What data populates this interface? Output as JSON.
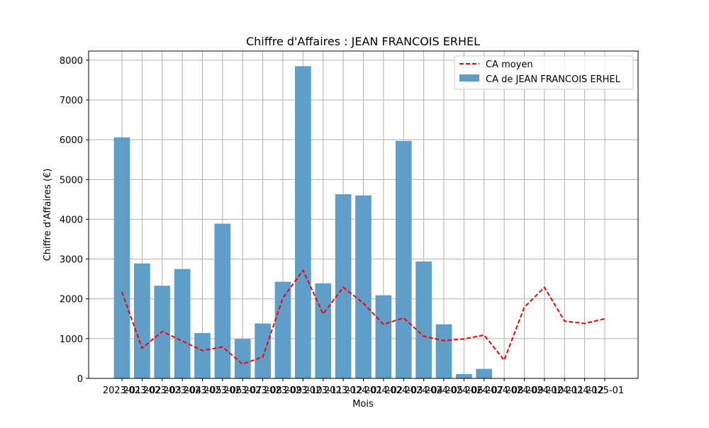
{
  "chart_data": {
    "type": "bar",
    "title": "Chiffre d'Affaires : JEAN FRANCOIS ERHEL",
    "xlabel": "Mois",
    "ylabel": "Chiffre d'Affaires (€)",
    "categories": [
      "2023-01",
      "2023-02",
      "2023-03",
      "2023-04",
      "2023-05",
      "2023-06",
      "2023-07",
      "2023-08",
      "2023-09",
      "2023-10",
      "2023-11",
      "2023-12",
      "2024-01",
      "2024-02",
      "2024-03",
      "2024-04",
      "2024-05",
      "2024-06",
      "2024-07",
      "2024-08",
      "2024-09",
      "2024-10",
      "2024-11",
      "2024-12",
      "2025-01"
    ],
    "yticks": [
      0,
      1000,
      2000,
      3000,
      4000,
      5000,
      6000,
      7000,
      8000
    ],
    "ylim": [
      0,
      8230
    ],
    "grid": true,
    "legend_position": "top-right",
    "series": [
      {
        "name": "CA de JEAN FRANCOIS ERHEL",
        "kind": "bar",
        "color": "#5f9ec9",
        "x": [
          "2023-01",
          "2023-02",
          "2023-03",
          "2023-04",
          "2023-05",
          "2023-06",
          "2023-07",
          "2023-08",
          "2023-09",
          "2023-10",
          "2023-11",
          "2023-12",
          "2024-01",
          "2024-02",
          "2024-03",
          "2024-04",
          "2024-05",
          "2024-06",
          "2024-07"
        ],
        "values": [
          6060,
          2890,
          2330,
          2750,
          1140,
          3890,
          990,
          1380,
          2430,
          7850,
          2390,
          4630,
          4600,
          2090,
          5970,
          2940,
          1360,
          110,
          240
        ]
      },
      {
        "name": "CA moyen",
        "kind": "line",
        "style": "dashed",
        "color": "#ff0000",
        "x": [
          "2023-01",
          "2023-02",
          "2023-03",
          "2023-04",
          "2023-05",
          "2023-06",
          "2023-07",
          "2023-08",
          "2023-09",
          "2023-10",
          "2023-11",
          "2023-12",
          "2024-01",
          "2024-02",
          "2024-03",
          "2024-04",
          "2024-05",
          "2024-06",
          "2024-07",
          "2024-08",
          "2024-09",
          "2024-10",
          "2024-11",
          "2024-12",
          "2025-01"
        ],
        "values": [
          2170,
          760,
          1180,
          940,
          700,
          790,
          360,
          540,
          2020,
          2720,
          1620,
          2290,
          1890,
          1360,
          1520,
          1060,
          950,
          990,
          1090,
          460,
          1790,
          2290,
          1440,
          1380,
          1500
        ]
      }
    ]
  }
}
